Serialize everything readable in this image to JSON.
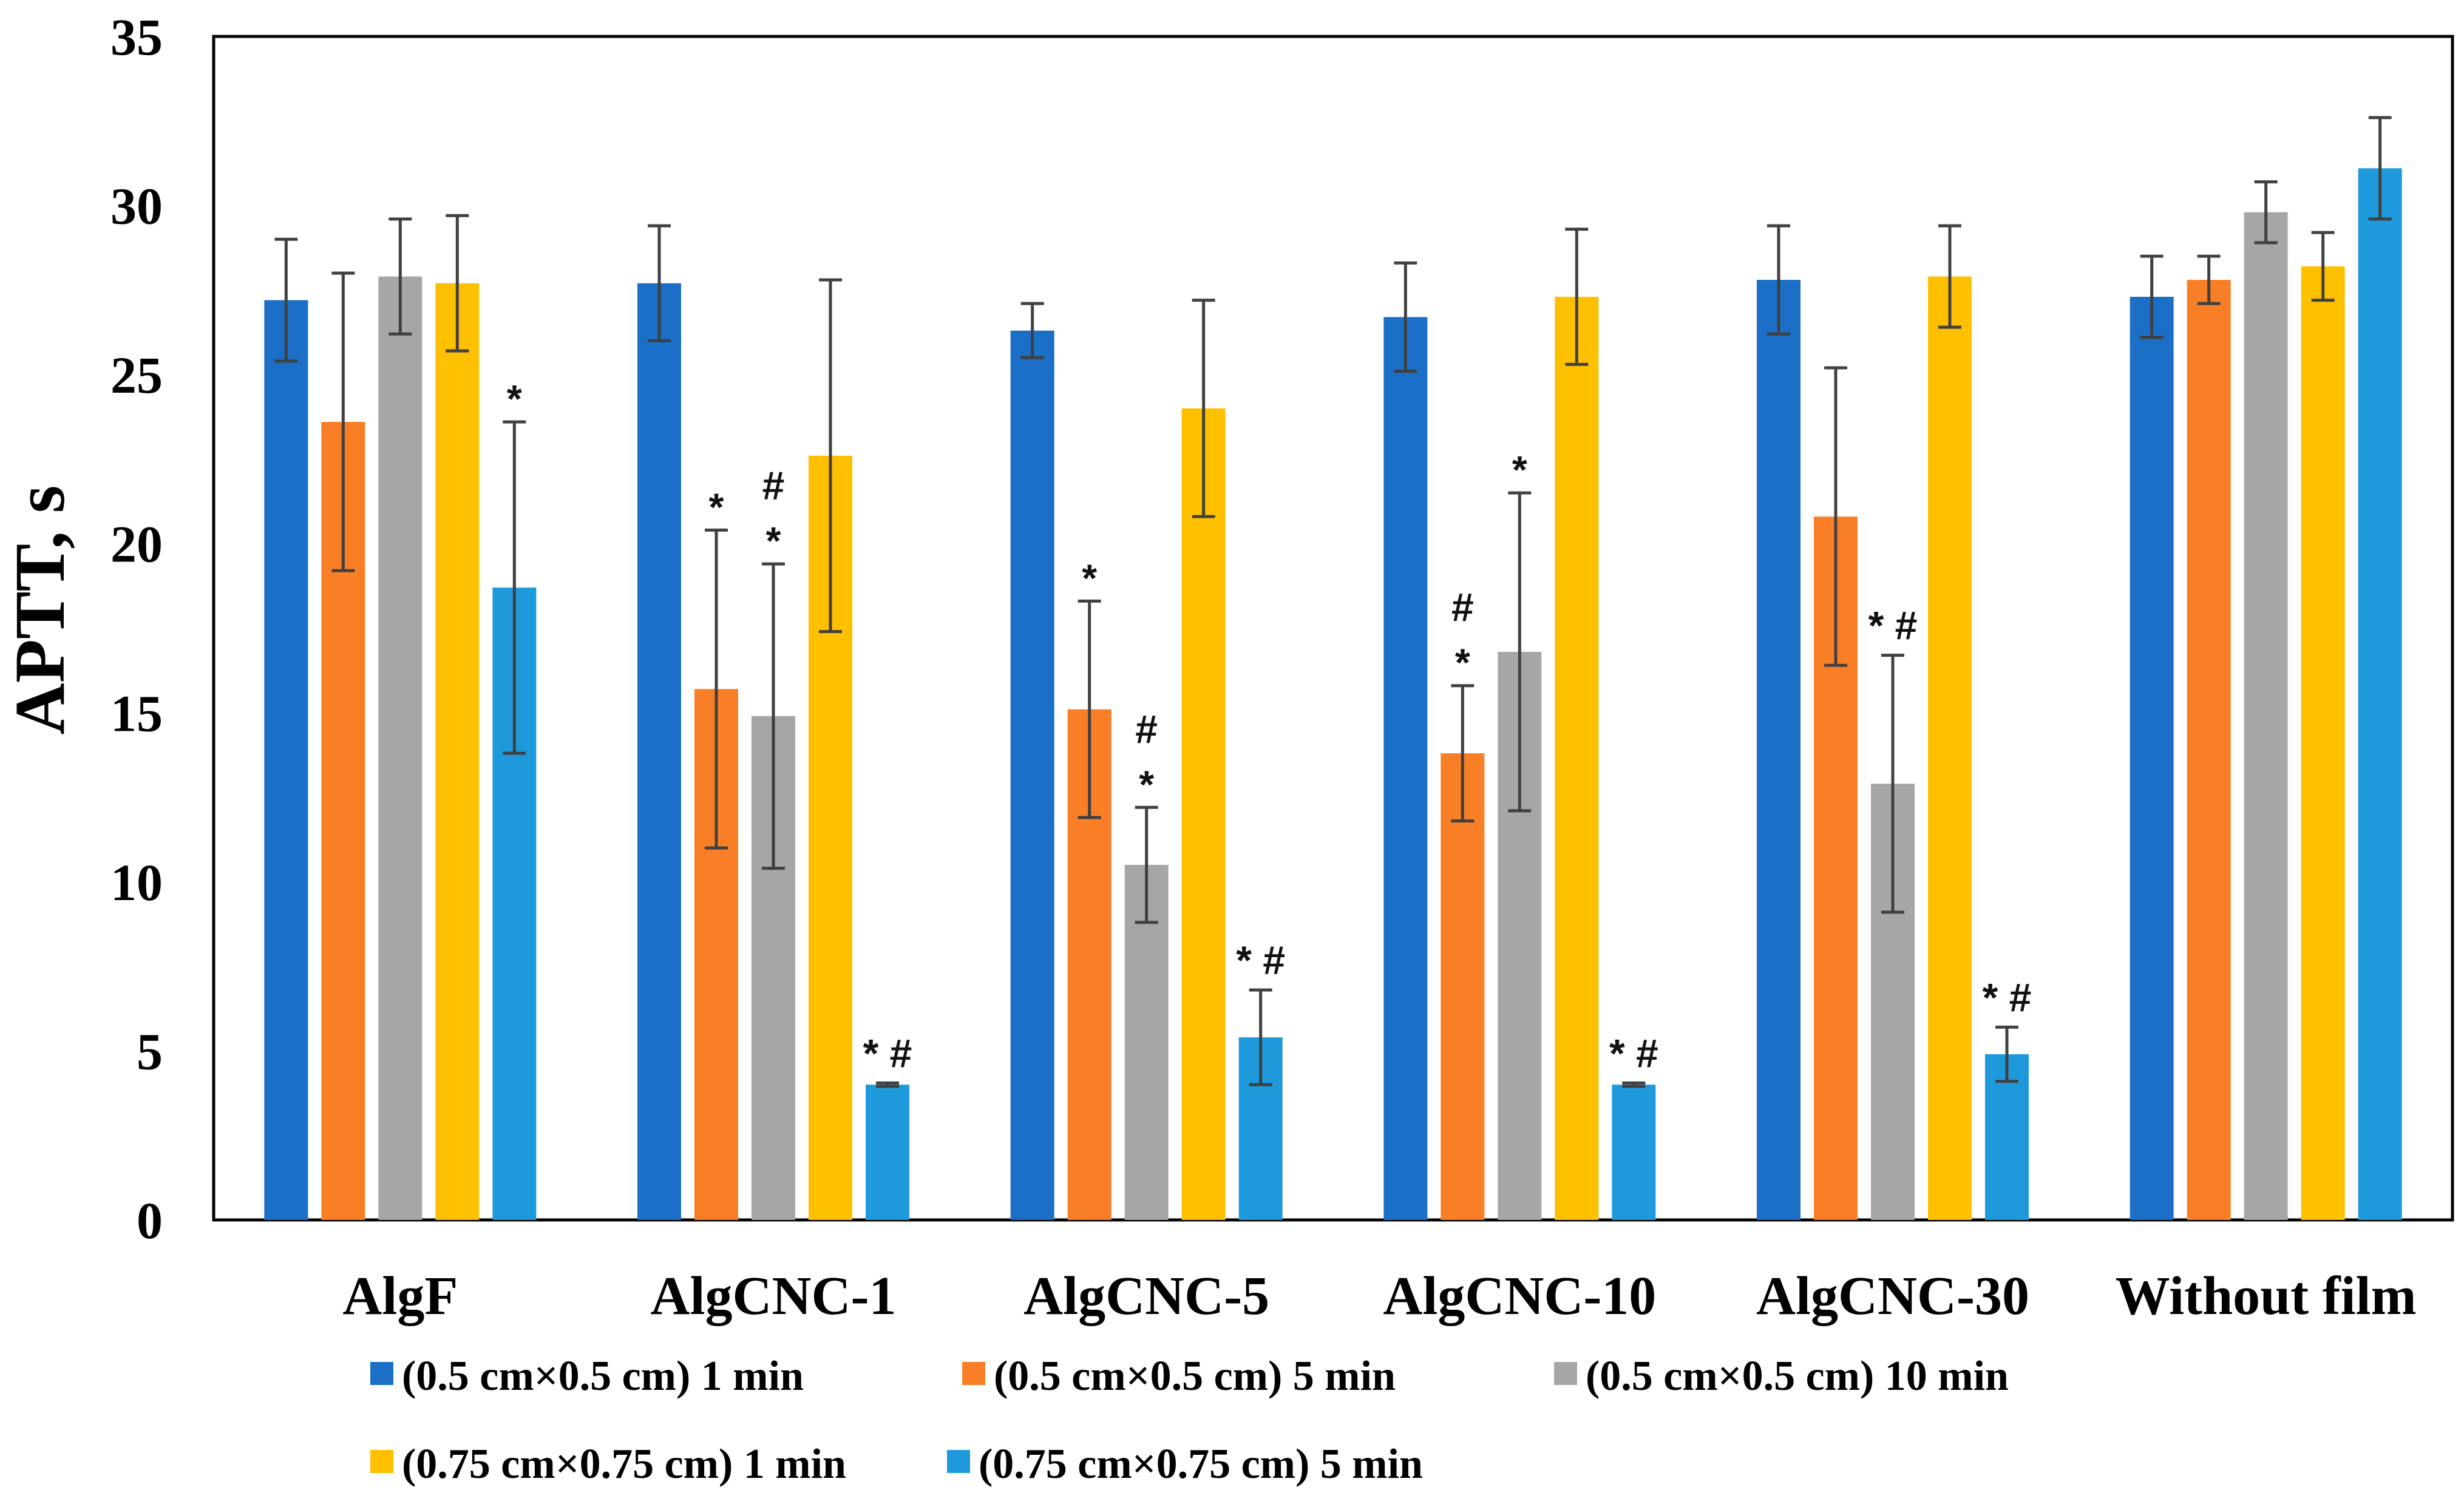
{
  "chart_data": {
    "type": "bar",
    "title": "",
    "xlabel": "",
    "ylabel": "APTT, s",
    "ylim": [
      0,
      35
    ],
    "yticks": [
      0,
      5,
      10,
      15,
      20,
      25,
      30,
      35
    ],
    "grid": false,
    "legend_position": "bottom",
    "categories": [
      "AlgF",
      "AlgCNC-1",
      "AlgCNC-5",
      "AlgCNC-10",
      "AlgCNC-30",
      "Without film"
    ],
    "series": [
      {
        "name": "(0.5 cm×0.5 cm) 1 min",
        "color": "#1B6FC6",
        "values": [
          27.2,
          27.7,
          26.3,
          26.7,
          27.8,
          27.3
        ],
        "errors": [
          1.8,
          1.7,
          0.8,
          1.6,
          1.6,
          1.2
        ],
        "annotations": [
          "",
          "",
          "",
          "",
          "",
          ""
        ]
      },
      {
        "name": "(0.5 cm×0.5 cm) 5 min",
        "color": "#F97F26",
        "values": [
          23.6,
          15.7,
          15.1,
          13.8,
          20.8,
          27.8
        ],
        "errors": [
          4.4,
          4.7,
          3.2,
          2.0,
          4.4,
          0.7
        ],
        "annotations": [
          "",
          "*",
          "*",
          "* #",
          "",
          ""
        ]
      },
      {
        "name": "(0.5 cm×0.5 cm) 10 min",
        "color": "#A6A6A6",
        "values": [
          27.9,
          14.9,
          10.5,
          16.8,
          12.9,
          29.8
        ],
        "errors": [
          1.7,
          4.5,
          1.7,
          4.7,
          3.8,
          0.9
        ],
        "annotations": [
          "",
          "* #",
          "* #",
          "*",
          "* #",
          ""
        ]
      },
      {
        "name": "(0.75 cm×0.75 cm) 1 min",
        "color": "#FFC000",
        "values": [
          27.7,
          22.6,
          24.0,
          27.3,
          27.9,
          28.2
        ],
        "errors": [
          2.0,
          5.2,
          3.2,
          2.0,
          1.5,
          1.0
        ],
        "annotations": [
          "",
          "",
          "",
          "",
          "",
          ""
        ]
      },
      {
        "name": "(0.75 cm×0.75 cm) 5 min",
        "color": "#1E9ADC",
        "values": [
          18.7,
          4.0,
          5.4,
          4.0,
          4.9,
          31.1
        ],
        "errors": [
          4.9,
          0.05,
          1.4,
          0.05,
          0.8,
          1.5
        ],
        "annotations": [
          "*",
          "* #",
          "* #",
          "* #",
          "* #",
          ""
        ]
      }
    ]
  }
}
